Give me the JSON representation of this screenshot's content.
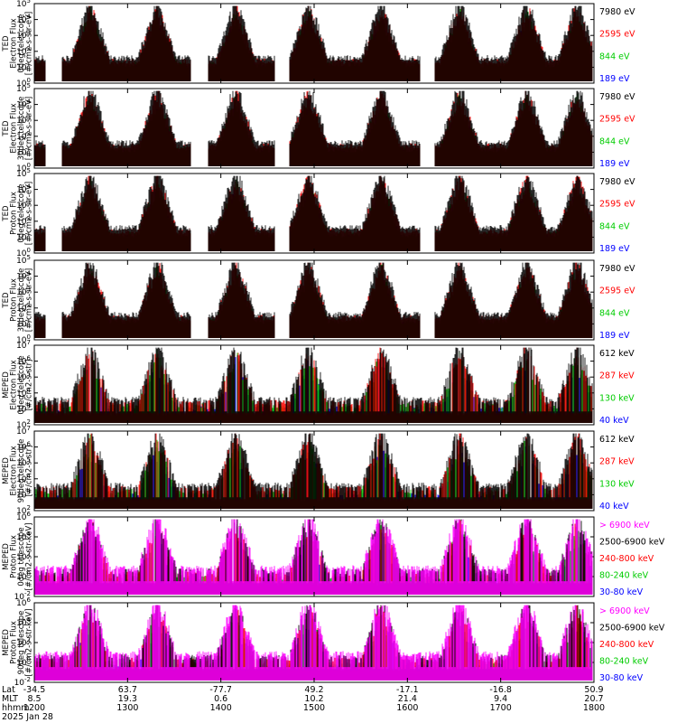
{
  "chart_data": [
    {
      "type": "line",
      "ylabel_lines": [
        "TED",
        "Electron Flux",
        "0deg telescope",
        "[#/cm2-s-str-eV]"
      ],
      "yscale": "log",
      "ylim_exp": [
        0,
        5
      ],
      "ytick_labels": [
        "10^0",
        "10^1",
        "10^2",
        "10^3",
        "10^4",
        "10^5"
      ],
      "series": [
        {
          "name": "7980 eV",
          "color": "#000000"
        },
        {
          "name": "2595 eV",
          "color": "#ff0000"
        },
        {
          "name": "844 eV",
          "color": "#00cc00"
        },
        {
          "name": "189 eV",
          "color": "#0000ff"
        }
      ]
    },
    {
      "type": "line",
      "ylabel_lines": [
        "TED",
        "Electron Flux",
        "30deg telescope",
        "[#/cm2-s-str-eV]"
      ],
      "yscale": "log",
      "ylim_exp": [
        0,
        5
      ],
      "ytick_labels": [
        "10^0",
        "10^1",
        "10^2",
        "10^3",
        "10^4",
        "10^5"
      ],
      "series": [
        {
          "name": "7980 eV",
          "color": "#000000"
        },
        {
          "name": "2595 eV",
          "color": "#ff0000"
        },
        {
          "name": "844 eV",
          "color": "#00cc00"
        },
        {
          "name": "189 eV",
          "color": "#0000ff"
        }
      ]
    },
    {
      "type": "line",
      "ylabel_lines": [
        "TED",
        "Proton Flux",
        "0deg telescope",
        "[#/cm2-s-str-eV]"
      ],
      "yscale": "log",
      "ylim_exp": [
        0,
        5
      ],
      "ytick_labels": [
        "10^0",
        "10^1",
        "10^2",
        "10^3",
        "10^4",
        "10^5"
      ],
      "series": [
        {
          "name": "7980 eV",
          "color": "#000000"
        },
        {
          "name": "2595 eV",
          "color": "#ff0000"
        },
        {
          "name": "844 eV",
          "color": "#00cc00"
        },
        {
          "name": "189 eV",
          "color": "#0000ff"
        }
      ]
    },
    {
      "type": "line",
      "ylabel_lines": [
        "TED",
        "Proton Flux",
        "30deg telescope",
        "[#/cm2-s-str-eV]"
      ],
      "yscale": "log",
      "ylim_exp": [
        0,
        5
      ],
      "ytick_labels": [
        "10^0",
        "10^1",
        "10^2",
        "10^3",
        "10^4",
        "10^5"
      ],
      "series": [
        {
          "name": "7980 eV",
          "color": "#000000"
        },
        {
          "name": "2595 eV",
          "color": "#ff0000"
        },
        {
          "name": "844 eV",
          "color": "#00cc00"
        },
        {
          "name": "189 eV",
          "color": "#0000ff"
        }
      ]
    },
    {
      "type": "line",
      "ylabel_lines": [
        "MEPED",
        "Electron Flux",
        "0deg telescope",
        "[#/cm2-s-str]"
      ],
      "yscale": "log",
      "ylim_exp": [
        2,
        7
      ],
      "ytick_labels": [
        "10^2",
        "10^3",
        "10^4",
        "10^5",
        "10^6",
        "10^7"
      ],
      "series": [
        {
          "name": "612 keV",
          "color": "#000000"
        },
        {
          "name": "287 keV",
          "color": "#ff0000"
        },
        {
          "name": "130 keV",
          "color": "#00cc00"
        },
        {
          "name": "40 keV",
          "color": "#0000ff"
        }
      ]
    },
    {
      "type": "line",
      "ylabel_lines": [
        "MEPED",
        "Electron Flux",
        "90deg telescope",
        "[#/cm2-s-str]"
      ],
      "yscale": "log",
      "ylim_exp": [
        2,
        7
      ],
      "ytick_labels": [
        "10^2",
        "10^3",
        "10^4",
        "10^5",
        "10^6",
        "10^7"
      ],
      "series": [
        {
          "name": "612 keV",
          "color": "#000000"
        },
        {
          "name": "287 keV",
          "color": "#ff0000"
        },
        {
          "name": "130 keV",
          "color": "#00cc00"
        },
        {
          "name": "40 keV",
          "color": "#0000ff"
        }
      ]
    },
    {
      "type": "line",
      "ylabel_lines": [
        "MEPED",
        "Proton Flux",
        "0deg telescope",
        "[#/cm2-s-str-keV]"
      ],
      "yscale": "log",
      "ylim_exp": [
        -3,
        6
      ],
      "ytick_labels": [
        "10^-2",
        "10^0",
        "10^2",
        "10^4",
        "10^6"
      ],
      "series": [
        {
          "name": "> 6900 keV",
          "color": "#ff00ff"
        },
        {
          "name": "2500-6900 keV",
          "color": "#000000"
        },
        {
          "name": "240-800 keV",
          "color": "#ff0000"
        },
        {
          "name": "80-240 keV",
          "color": "#00cc00"
        },
        {
          "name": "30-80 keV",
          "color": "#0000ff"
        }
      ]
    },
    {
      "type": "line",
      "ylabel_lines": [
        "MEPED",
        "Proton Flux",
        "90deg telescope",
        "[#/cm2-s-str-keV]"
      ],
      "yscale": "log",
      "ylim_exp": [
        -3,
        6
      ],
      "ytick_labels": [
        "10^-2",
        "10^0",
        "10^2",
        "10^4",
        "10^6"
      ],
      "series": [
        {
          "name": "> 6900 keV",
          "color": "#ff00ff"
        },
        {
          "name": "2500-6900 keV",
          "color": "#000000"
        },
        {
          "name": "240-800 keV",
          "color": "#ff0000"
        },
        {
          "name": "80-240 keV",
          "color": "#00cc00"
        },
        {
          "name": "30-80 keV",
          "color": "#0000ff"
        }
      ]
    }
  ],
  "xaxis": {
    "row_labels": [
      "Lat",
      "MLT",
      "hhmm"
    ],
    "date": "2025 Jan 28",
    "ticks": [
      {
        "lat": "-34.5",
        "mlt": "8.5",
        "time": "1200"
      },
      {
        "lat": "63.7",
        "mlt": "19.3",
        "time": "1300"
      },
      {
        "lat": "-77.7",
        "mlt": "0.6",
        "time": "1400"
      },
      {
        "lat": "49.2",
        "mlt": "10.2",
        "time": "1500"
      },
      {
        "lat": "-17.1",
        "mlt": "21.4",
        "time": "1600"
      },
      {
        "lat": "-16.8",
        "mlt": "9.4",
        "time": "1700"
      },
      {
        "lat": "50.9",
        "mlt": "20.7",
        "time": "1800"
      }
    ]
  }
}
